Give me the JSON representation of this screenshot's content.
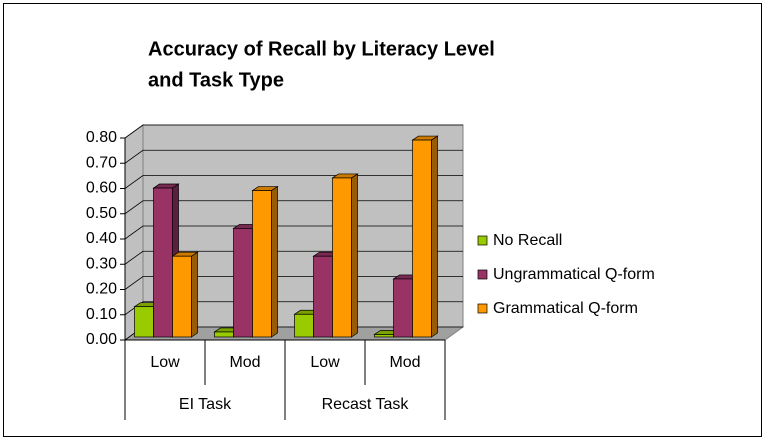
{
  "chart_data": {
    "type": "bar3d",
    "title": [
      "Accuracy of Recall by Literacy Level",
      "and Task Type"
    ],
    "categories": [
      "Low",
      "Mod",
      "Low",
      "Mod"
    ],
    "category_groups": [
      "EI Task",
      "Recast Task"
    ],
    "series": [
      {
        "name": "No Recall",
        "color": "#99cc00",
        "values": [
          0.12,
          0.02,
          0.09,
          0.01
        ]
      },
      {
        "name": "Ungrammatical Q-form",
        "color": "#993366",
        "values": [
          0.59,
          0.43,
          0.32,
          0.23
        ]
      },
      {
        "name": "Grammatical Q-form",
        "color": "#ff9900",
        "values": [
          0.32,
          0.58,
          0.63,
          0.78
        ]
      }
    ],
    "ylim": [
      0,
      0.8
    ],
    "yticks": [
      {
        "value": 0,
        "label": "0.00"
      },
      {
        "value": 0.1,
        "label": "0.10"
      },
      {
        "value": 0.2,
        "label": "0.20"
      },
      {
        "value": 0.3,
        "label": "0.30"
      },
      {
        "value": 0.4,
        "label": "0.40"
      },
      {
        "value": 0.5,
        "label": "0.50"
      },
      {
        "value": 0.6,
        "label": "0.60"
      },
      {
        "value": 0.7,
        "label": "0.70"
      },
      {
        "value": 0.8,
        "label": "0.80"
      }
    ],
    "grid": true,
    "legend": "right"
  }
}
